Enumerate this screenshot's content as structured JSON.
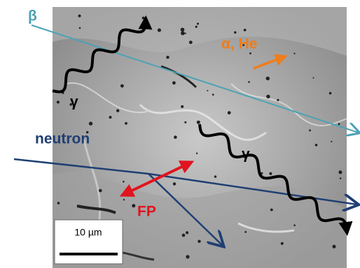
{
  "labels": {
    "beta": "β",
    "alpha_he": "α, He",
    "gamma_1": "γ",
    "neutron": "neutron",
    "gamma_2": "γ",
    "fp": "FP"
  },
  "scale_bar": {
    "label": "10 µm"
  }
}
